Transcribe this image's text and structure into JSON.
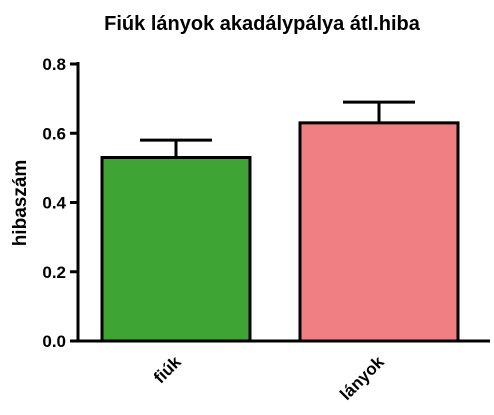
{
  "chart_data": {
    "type": "bar",
    "title": "Fiúk lányok akadálypálya átl.hiba",
    "ylabel": "hibaszám",
    "categories": [
      "fiúk",
      "lányok"
    ],
    "values": [
      0.53,
      0.63
    ],
    "errors": [
      0.05,
      0.06
    ],
    "colors": [
      "#3ea535",
      "#f07f84"
    ],
    "ylim": [
      0,
      0.8
    ],
    "yticks": [
      {
        "value": 0,
        "label": "0.0"
      },
      0.2,
      0.4,
      0.6,
      0.8
    ]
  }
}
